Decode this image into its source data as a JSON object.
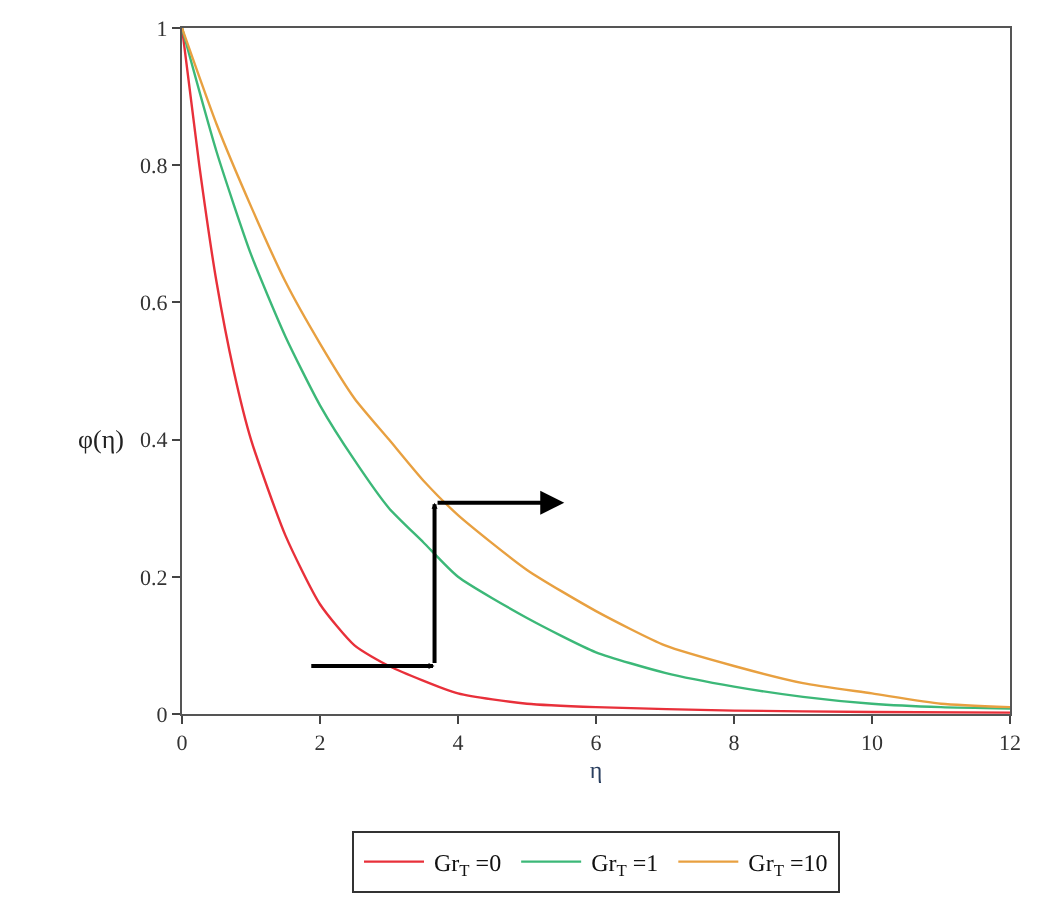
{
  "chart_data": {
    "type": "line",
    "xlabel": "η",
    "ylabel": "φ(η)",
    "xlim": [
      0,
      12
    ],
    "ylim": [
      0,
      1
    ],
    "xticks": [
      0,
      2,
      4,
      6,
      8,
      10,
      12
    ],
    "yticks": [
      0,
      0.2,
      0.4,
      0.6,
      0.8,
      1
    ],
    "grid": false,
    "legend": "bottom",
    "marker": "none",
    "line_style": "solid",
    "series": [
      {
        "name": "Gr$_{T}$ =0",
        "color": "#e8303a",
        "x": [
          0,
          0.25,
          0.5,
          0.75,
          1,
          1.5,
          2,
          2.5,
          3,
          4,
          5,
          6,
          8,
          10,
          12
        ],
        "values": [
          1,
          0.8,
          0.63,
          0.5,
          0.4,
          0.26,
          0.16,
          0.1,
          0.07,
          0.03,
          0.015,
          0.01,
          0.005,
          0.003,
          0.002
        ]
      },
      {
        "name": "Gr$_{T}$ =1",
        "color": "#3cb878",
        "x": [
          0,
          0.5,
          1,
          1.5,
          2,
          2.5,
          3,
          3.5,
          4,
          5,
          6,
          7,
          8,
          9,
          10,
          11,
          12
        ],
        "values": [
          1,
          0.82,
          0.67,
          0.55,
          0.45,
          0.37,
          0.3,
          0.25,
          0.2,
          0.14,
          0.09,
          0.06,
          0.04,
          0.025,
          0.015,
          0.01,
          0.008
        ]
      },
      {
        "name": "Gr$_{T}$ =10",
        "color": "#e8a040",
        "x": [
          0,
          0.5,
          1,
          1.5,
          2,
          2.5,
          3,
          3.5,
          4,
          5,
          6,
          7,
          8,
          9,
          10,
          11,
          12
        ],
        "values": [
          1,
          0.86,
          0.74,
          0.63,
          0.54,
          0.46,
          0.4,
          0.34,
          0.29,
          0.21,
          0.15,
          0.1,
          0.07,
          0.045,
          0.03,
          0.015,
          0.01
        ]
      }
    ]
  }
}
